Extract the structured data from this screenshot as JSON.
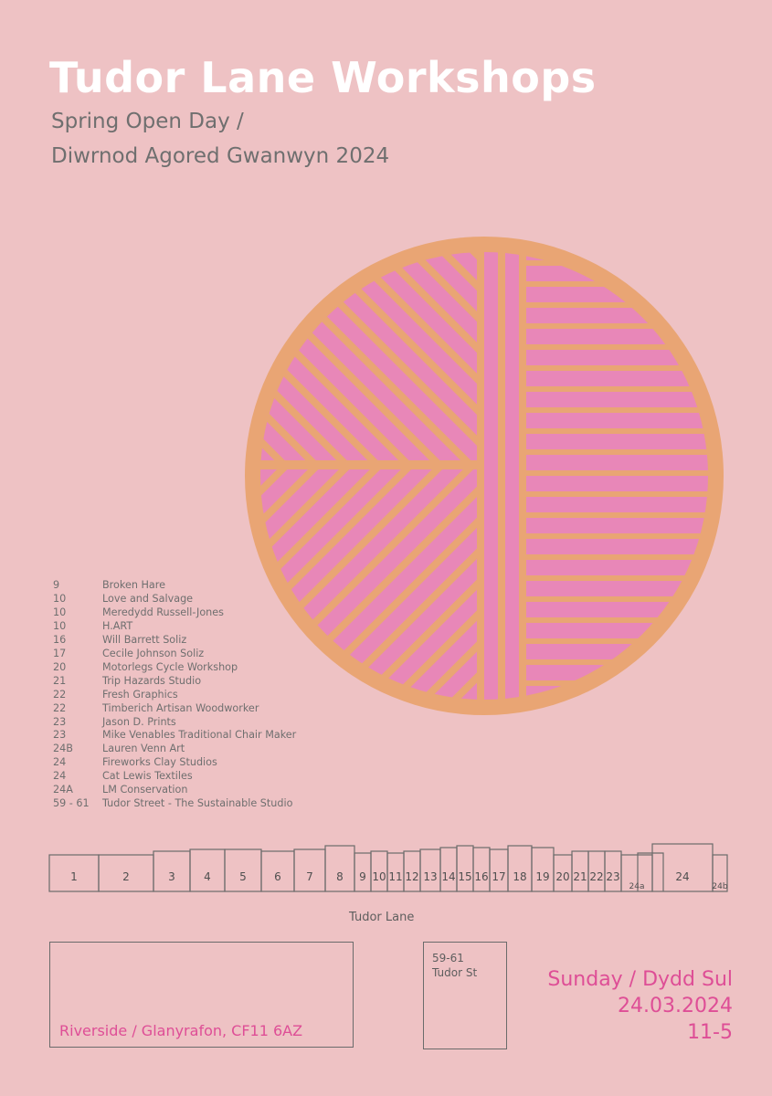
{
  "header": {
    "title": "Tudor Lane Workshops",
    "subtitle_line1": "Spring Open Day /",
    "subtitle_line2": "Diwrnod Agored Gwanwyn 2024"
  },
  "emblem": {
    "name": "workshop-map-roundel",
    "ring_color": "#e9a574",
    "stripe_color": "#e887b8"
  },
  "directory": [
    {
      "number": "9",
      "name": "Broken Hare"
    },
    {
      "number": "10",
      "name": "Love and Salvage"
    },
    {
      "number": "10",
      "name": "Meredydd Russell-Jones"
    },
    {
      "number": "10",
      "name": "H.ART"
    },
    {
      "number": "16",
      "name": "Will Barrett Soliz"
    },
    {
      "number": "17",
      "name": "Cecile Johnson Soliz"
    },
    {
      "number": "20",
      "name": "Motorlegs Cycle Workshop"
    },
    {
      "number": "21",
      "name": "Trip Hazards Studio"
    },
    {
      "number": "22",
      "name": "Fresh Graphics"
    },
    {
      "number": "22",
      "name": "Timberich Artisan Woodworker"
    },
    {
      "number": "23",
      "name": "Jason D. Prints"
    },
    {
      "number": "23",
      "name": "Mike Venables Traditional Chair Maker"
    },
    {
      "number": "24B",
      "name": "Lauren Venn Art"
    },
    {
      "number": "24",
      "name": "Fireworks Clay Studios"
    },
    {
      "number": "24",
      "name": "Cat Lewis Textiles"
    },
    {
      "number": "24A",
      "name": "LM Conservation"
    },
    {
      "number": "59 - 61",
      "name": "Tudor Street - The Sustainable Studio"
    }
  ],
  "street_map": {
    "units": [
      "1",
      "2",
      "3",
      "4",
      "5",
      "6",
      "7",
      "8",
      "9",
      "10",
      "11",
      "12",
      "13",
      "14",
      "15",
      "16",
      "17",
      "18",
      "19",
      "20",
      "21",
      "22",
      "23",
      "24a",
      "24",
      "24b"
    ],
    "street_name": "Tudor Lane"
  },
  "locations": {
    "riverside": "Riverside / Glanyrafon, CF11 6AZ",
    "tudor_st_line1": "59-61",
    "tudor_st_line2": "Tudor St"
  },
  "event": {
    "day": "Sunday / Dydd Sul",
    "date": "24.03.2024",
    "time": "11-5"
  },
  "colors": {
    "background": "#eec2c4",
    "title": "#ffffff",
    "text": "#6f6f6f",
    "accent": "#de4e96"
  }
}
